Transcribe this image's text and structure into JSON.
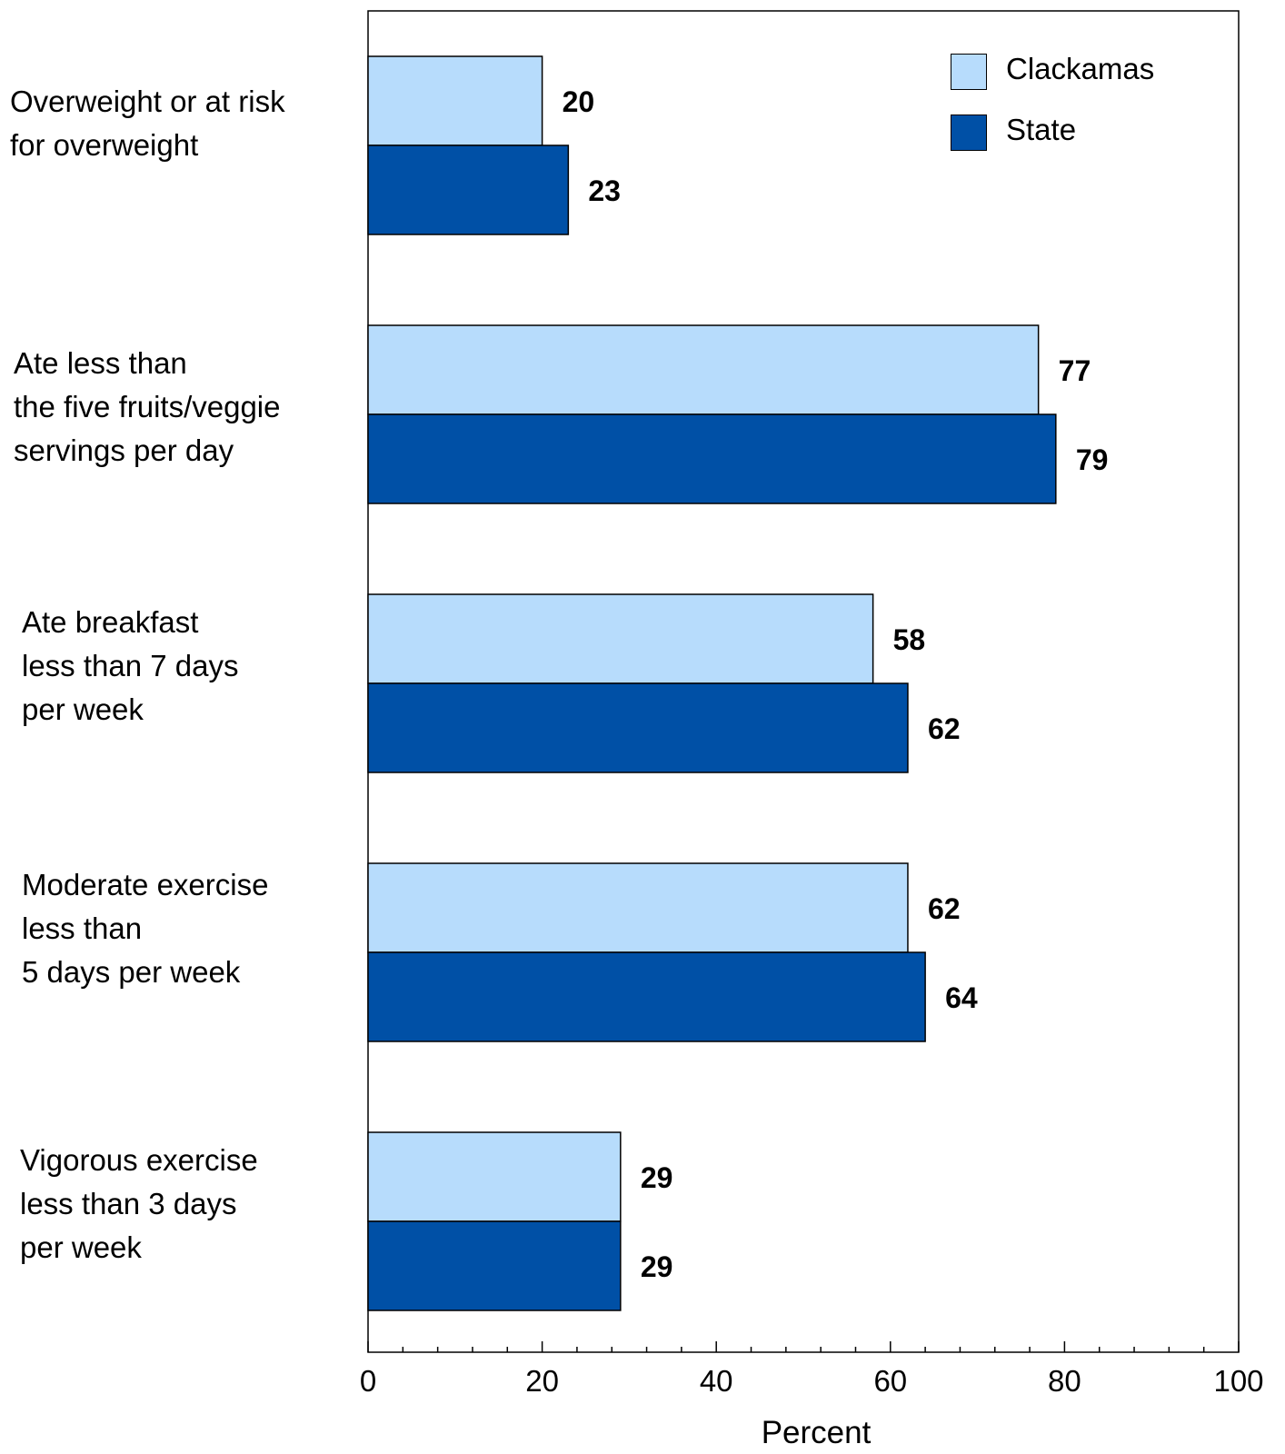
{
  "chart_data": {
    "type": "bar",
    "orientation": "horizontal",
    "categories": [
      "Overweight or at risk\nfor overweight",
      "Ate less than\nthe five fruits/veggie\nservings per day",
      "Ate breakfast\nless than 7 days\nper week",
      "Moderate exercise\nless than\n5 days per week",
      "Vigorous exercise\nless than 3 days\nper week"
    ],
    "series": [
      {
        "name": "Clackamas",
        "color": "#b7dcfc",
        "values": [
          20,
          77,
          58,
          62,
          29
        ]
      },
      {
        "name": "State",
        "color": "#0050a6",
        "values": [
          23,
          79,
          62,
          64,
          29
        ]
      }
    ],
    "xlabel": "Percent",
    "xlim": [
      0,
      100
    ],
    "xticks": [
      0,
      20,
      40,
      60,
      80,
      100
    ],
    "grid": false,
    "legend": "top-right",
    "data_labels": true
  }
}
